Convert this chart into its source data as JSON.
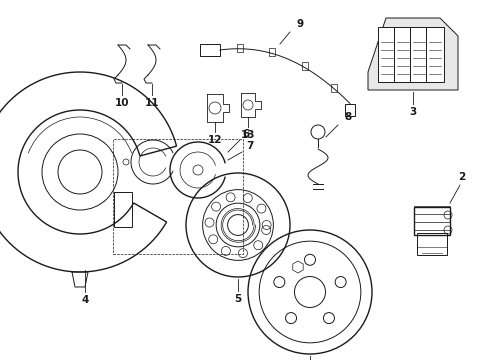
{
  "background_color": "#ffffff",
  "line_color": "#1a1a1a",
  "fig_width": 4.89,
  "fig_height": 3.6,
  "dpi": 100,
  "gray_fill": "#e8e8e8",
  "light_gray": "#d0d0d0"
}
